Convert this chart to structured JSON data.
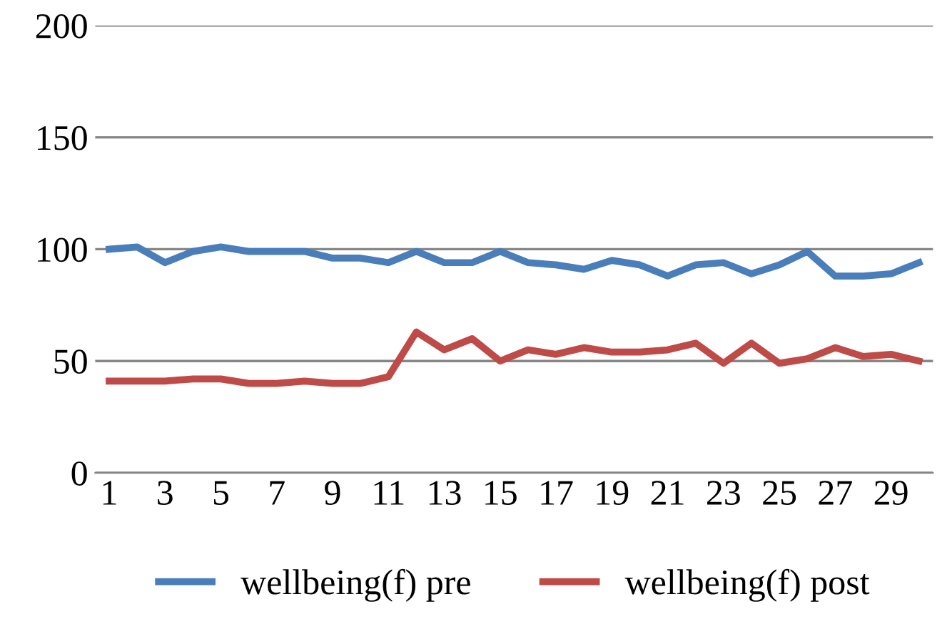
{
  "chart_data": {
    "type": "line",
    "categories": [
      "1",
      null,
      "3",
      null,
      "5",
      null,
      "7",
      null,
      "9",
      null,
      "11",
      null,
      "13",
      null,
      "15",
      null,
      "17",
      null,
      "19",
      null,
      "21",
      null,
      "23",
      null,
      "25",
      null,
      "27",
      null,
      "29",
      null
    ],
    "series": [
      {
        "name": "wellbeing(f) pre",
        "color": "#4a7ebb",
        "values": [
          100,
          101,
          94,
          99,
          101,
          99,
          99,
          99,
          96,
          96,
          94,
          99,
          94,
          94,
          99,
          94,
          93,
          91,
          95,
          93,
          88,
          93,
          94,
          89,
          93,
          99,
          88,
          88,
          89,
          94
        ]
      },
      {
        "name": "wellbeing(f) post",
        "color": "#be4b48",
        "values": [
          41,
          41,
          41,
          42,
          42,
          40,
          40,
          41,
          40,
          40,
          43,
          63,
          55,
          60,
          50,
          55,
          53,
          56,
          54,
          54,
          55,
          58,
          49,
          58,
          49,
          51,
          56,
          52,
          53,
          50
        ]
      }
    ],
    "ylim": [
      0,
      200
    ],
    "yticks": [
      0,
      50,
      100,
      150,
      200
    ],
    "grid": "y",
    "legend": "bottom",
    "marker": "none",
    "line_style": "solid"
  }
}
